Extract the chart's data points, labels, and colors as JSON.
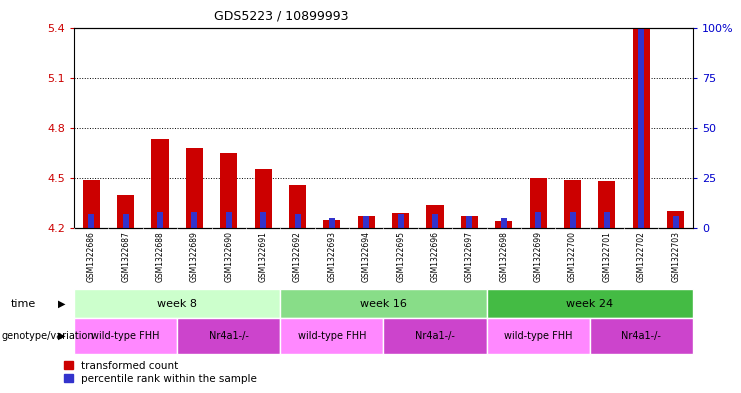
{
  "title": "GDS5223 / 10899993",
  "samples": [
    "GSM1322686",
    "GSM1322687",
    "GSM1322688",
    "GSM1322689",
    "GSM1322690",
    "GSM1322691",
    "GSM1322692",
    "GSM1322693",
    "GSM1322694",
    "GSM1322695",
    "GSM1322696",
    "GSM1322697",
    "GSM1322698",
    "GSM1322699",
    "GSM1322700",
    "GSM1322701",
    "GSM1322702",
    "GSM1322703"
  ],
  "red_values": [
    4.49,
    4.4,
    4.73,
    4.68,
    4.65,
    4.55,
    4.46,
    4.25,
    4.27,
    4.29,
    4.34,
    4.27,
    4.24,
    4.5,
    4.49,
    4.48,
    5.4,
    4.3
  ],
  "blue_values": [
    7,
    7,
    8,
    8,
    8,
    8,
    7,
    5,
    6,
    7,
    7,
    6,
    5,
    8,
    8,
    8,
    100,
    6
  ],
  "ymin": 4.2,
  "ymax": 5.4,
  "y2min": 0,
  "y2max": 100,
  "yticks": [
    4.2,
    4.5,
    4.8,
    5.1,
    5.4
  ],
  "ytick_labels": [
    "4.2",
    "4.5",
    "4.8",
    "5.1",
    "5.4"
  ],
  "y2ticks": [
    0,
    25,
    50,
    75,
    100
  ],
  "y2tick_labels": [
    "0",
    "25",
    "50",
    "75",
    "100%"
  ],
  "dotted_lines": [
    4.5,
    4.8,
    5.1
  ],
  "red_color": "#cc0000",
  "blue_color": "#3333cc",
  "plot_bg": "#ffffff",
  "xticklabel_bg": "#d8d8d8",
  "time_groups": [
    {
      "label": "week 8",
      "start": 0,
      "end": 6,
      "color": "#ccffcc"
    },
    {
      "label": "week 16",
      "start": 6,
      "end": 12,
      "color": "#88dd88"
    },
    {
      "label": "week 24",
      "start": 12,
      "end": 18,
      "color": "#44bb44"
    }
  ],
  "geno_groups": [
    {
      "label": "wild-type FHH",
      "start": 0,
      "end": 3,
      "color": "#ff88ff"
    },
    {
      "label": "Nr4a1-/-",
      "start": 3,
      "end": 6,
      "color": "#cc44cc"
    },
    {
      "label": "wild-type FHH",
      "start": 6,
      "end": 9,
      "color": "#ff88ff"
    },
    {
      "label": "Nr4a1-/-",
      "start": 9,
      "end": 12,
      "color": "#cc44cc"
    },
    {
      "label": "wild-type FHH",
      "start": 12,
      "end": 15,
      "color": "#ff88ff"
    },
    {
      "label": "Nr4a1-/-",
      "start": 15,
      "end": 18,
      "color": "#cc44cc"
    }
  ],
  "legend_labels": [
    "transformed count",
    "percentile rank within the sample"
  ],
  "legend_colors": [
    "#cc0000",
    "#3333cc"
  ],
  "axis_color_left": "#cc0000",
  "axis_color_right": "#0000cc",
  "time_label": "time",
  "geno_label": "genotype/variation"
}
